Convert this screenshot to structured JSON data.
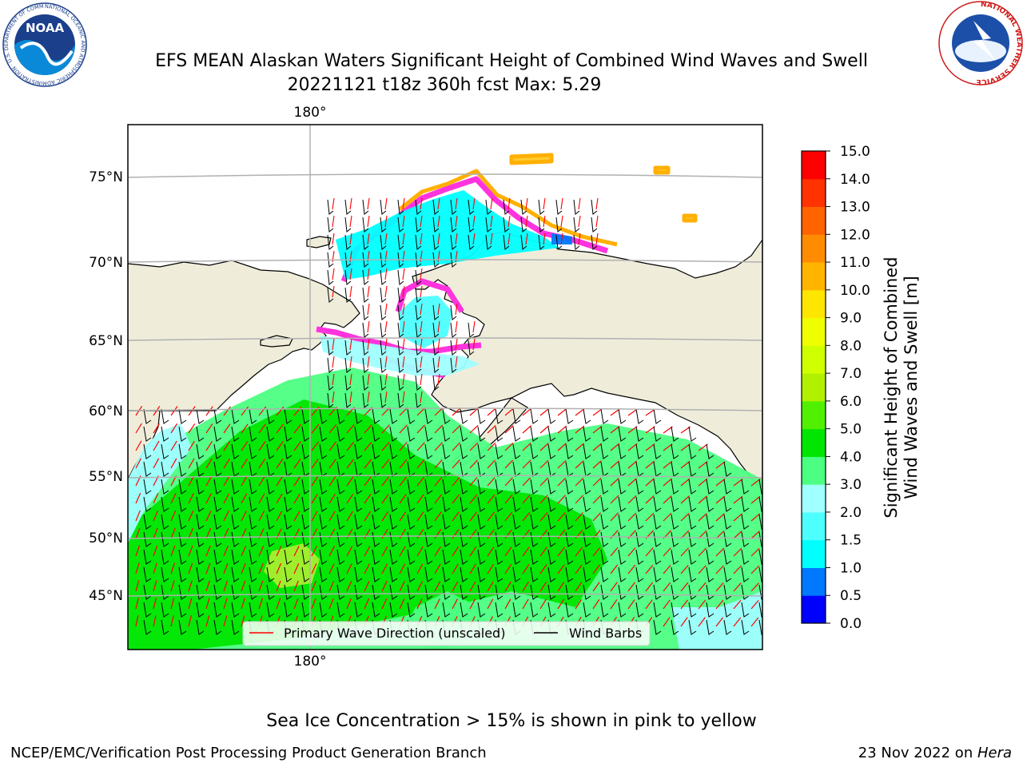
{
  "title_line1": "EFS MEAN Alaskan Waters Significant Height of Combined Wind Waves and Swell",
  "title_line2": "20221121 t18z 360h fcst   Max: 5.29",
  "lon_label_top": "180°",
  "lon_label_bottom": "180°",
  "lat_labels": [
    "75°N",
    "70°N",
    "65°N",
    "60°N",
    "55°N",
    "50°N",
    "45°N"
  ],
  "legend": {
    "primary_wave": "Primary Wave Direction (unscaled)",
    "wind_barbs": "Wind Barbs"
  },
  "colorbar": {
    "title_line1": "Significant Height of Combined",
    "title_line2": "Wind Waves and Swell [m]",
    "ticks": [
      "0.0",
      "0.5",
      "1.0",
      "1.5",
      "2.0",
      "3.0",
      "4.0",
      "5.0",
      "6.0",
      "7.0",
      "8.0",
      "9.0",
      "10.0",
      "11.0",
      "12.0",
      "13.0",
      "14.0",
      "15.0"
    ],
    "colors": [
      "#0000ff",
      "#0078ff",
      "#00ffff",
      "#4dffff",
      "#a0ffff",
      "#4cff82",
      "#00e600",
      "#50f000",
      "#b0f000",
      "#d0ff00",
      "#f0ff00",
      "#ffe600",
      "#ffb400",
      "#ff8c00",
      "#ff6400",
      "#ff3200",
      "#ff0000"
    ]
  },
  "caption": "Sea Ice Concentration > 15% is shown in pink to yellow",
  "footer_left": "NCEP/EMC/Verification Post Processing Product Generation Branch",
  "footer_right_prefix": "23 Nov 2022 on ",
  "footer_right_host": "Hera",
  "logos": {
    "noaa_text": "NOAA",
    "noaa_ring": "NATIONAL OCEANIC AND ATMOSPHERIC ADMINISTRATION · U.S. DEPARTMENT OF COMMERCE",
    "nws_ring": "NATIONAL WEATHER SERVICE"
  },
  "colors": {
    "land": "#efedda",
    "ice_pink": "#ff33dd",
    "ice_yellow": "#ffb000",
    "wave_arrow": "#ff0000",
    "wind_barb": "#000000",
    "grid": "#b0b0b0"
  }
}
